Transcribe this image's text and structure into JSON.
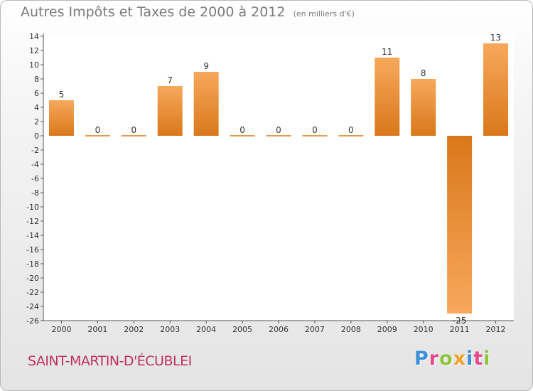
{
  "header": {
    "title": "Autres Impôts et Taxes de 2000 à 2012",
    "unit": "(en milliers d'€)"
  },
  "footer": {
    "commune": "SAINT-MARTIN-D'ÉCUBLEI",
    "logo_text": "Proxiti"
  },
  "colors": {
    "bar_top": "#f7a85c",
    "bar_bottom": "#d9781a",
    "logo": [
      "#3d8fd8",
      "#e84a8a",
      "#8cc63f",
      "#f2a22a",
      "#3d8fd8",
      "#e84a8a",
      "#8cc63f"
    ]
  },
  "chart_data": {
    "type": "bar",
    "title": "Autres Impôts et Taxes de 2000 à 2012",
    "subtitle": "(en milliers d'€)",
    "xlabel": "",
    "ylabel": "",
    "categories": [
      "2000",
      "2001",
      "2002",
      "2003",
      "2004",
      "2005",
      "2006",
      "2007",
      "2008",
      "2009",
      "2010",
      "2011",
      "2012"
    ],
    "values": [
      5,
      0,
      0,
      7,
      9,
      0,
      0,
      0,
      0,
      11,
      8,
      -25,
      13
    ],
    "ylim": [
      -26,
      14
    ],
    "yticks": [
      14,
      12,
      10,
      8,
      6,
      4,
      2,
      0,
      -2,
      -4,
      -6,
      -8,
      -10,
      -12,
      -14,
      -16,
      -18,
      -20,
      -22,
      -24,
      -26
    ],
    "grid": false,
    "legend": "none"
  }
}
